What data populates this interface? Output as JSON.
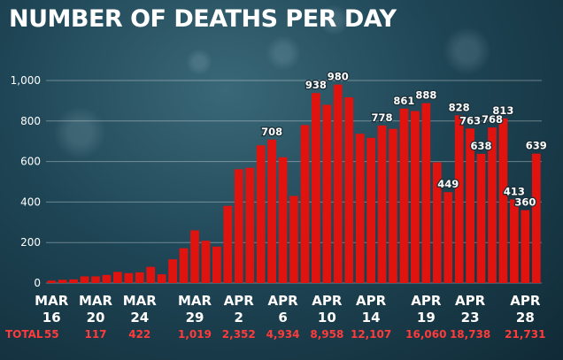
{
  "title": "NUMBER OF DEATHS PER DAY",
  "chart_data": {
    "type": "bar",
    "title": "NUMBER OF DEATHS PER DAY",
    "xlabel": "",
    "ylabel": "",
    "ylim": [
      0,
      1000
    ],
    "yticks": [
      "0",
      "200",
      "400",
      "600",
      "800",
      "1,000"
    ],
    "grid": true,
    "bar_color": "#e0130f",
    "series": [
      {
        "values": [
          12,
          16,
          18,
          33,
          33,
          40,
          55,
          49,
          53,
          80,
          43,
          117,
          172,
          260,
          209,
          180,
          381,
          562,
          569,
          680,
          708,
          621,
          430,
          780,
          938,
          880,
          980,
          917,
          737,
          717,
          778,
          761,
          861,
          849,
          888,
          596,
          449,
          828,
          763,
          638,
          768,
          813,
          413,
          360,
          639
        ]
      }
    ],
    "data_labels": [
      {
        "index": 20,
        "text": "708"
      },
      {
        "index": 24,
        "text": "938"
      },
      {
        "index": 26,
        "text": "980"
      },
      {
        "index": 30,
        "text": "778"
      },
      {
        "index": 32,
        "text": "861"
      },
      {
        "index": 34,
        "text": "888"
      },
      {
        "index": 36,
        "text": "449"
      },
      {
        "index": 37,
        "text": "828"
      },
      {
        "index": 38,
        "text": "763"
      },
      {
        "index": 39,
        "text": "638"
      },
      {
        "index": 40,
        "text": "768"
      },
      {
        "index": 41,
        "text": "813"
      },
      {
        "index": 42,
        "text": "413"
      },
      {
        "index": 43,
        "text": "360"
      },
      {
        "index": 44,
        "text": "639"
      }
    ],
    "x_ticks": [
      {
        "index": 0,
        "month": "MAR",
        "day": "16",
        "total": "55"
      },
      {
        "index": 4,
        "month": "MAR",
        "day": "20",
        "total": "117"
      },
      {
        "index": 8,
        "month": "MAR",
        "day": "24",
        "total": "422"
      },
      {
        "index": 13,
        "month": "MAR",
        "day": "29",
        "total": "1,019"
      },
      {
        "index": 17,
        "month": "APR",
        "day": "2",
        "total": "2,352"
      },
      {
        "index": 21,
        "month": "APR",
        "day": "6",
        "total": "4,934"
      },
      {
        "index": 25,
        "month": "APR",
        "day": "10",
        "total": "8,958"
      },
      {
        "index": 29,
        "month": "APR",
        "day": "14",
        "total": "12,107"
      },
      {
        "index": 34,
        "month": "APR",
        "day": "19",
        "total": "16,060"
      },
      {
        "index": 38,
        "month": "APR",
        "day": "23",
        "total": "18,738"
      },
      {
        "index": 43,
        "month": "APR",
        "day": "28",
        "total": "21,731"
      }
    ],
    "totals_label": "TOTAL"
  }
}
